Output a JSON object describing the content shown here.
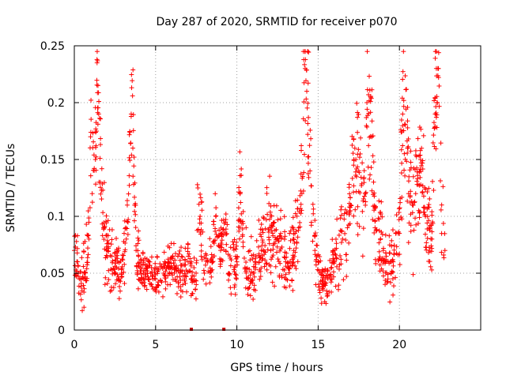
{
  "chart_data": {
    "type": "scatter",
    "title": "Day 287 of 2020, SRMTID for receiver p070",
    "xlabel": "GPS time / hours",
    "ylabel": "SRMTID / TECUs",
    "xlim": [
      0,
      25
    ],
    "ylim": [
      0,
      0.25
    ],
    "grid": true,
    "marker": "plus",
    "color": "#ff0000",
    "x_ticks": [
      0,
      5,
      10,
      15,
      20
    ],
    "x_tick_labels": [
      "0",
      "5",
      "10",
      "15",
      "20"
    ],
    "y_ticks": [
      0,
      0.05,
      0.1,
      0.15,
      0.2,
      0.25
    ],
    "y_tick_labels": [
      "0",
      "0.05",
      "0.1",
      "0.15",
      "0.2",
      "0.25"
    ],
    "series": [
      {
        "name": "p070",
        "description": "dense scatter of ~5-minute SRMTID samples; envelope values below",
        "x": [
          0.0,
          0.2,
          0.4,
          0.6,
          0.9,
          1.0,
          1.1,
          1.3,
          1.4,
          1.5,
          1.6,
          1.8,
          2.0,
          2.3,
          2.6,
          2.9,
          3.2,
          3.5,
          3.6,
          3.8,
          4.1,
          4.5,
          5.0,
          5.5,
          6.0,
          6.5,
          7.0,
          7.5,
          7.6,
          8.0,
          8.5,
          8.7,
          9.0,
          9.3,
          9.5,
          10.0,
          10.2,
          10.5,
          11.0,
          11.5,
          12.0,
          12.5,
          13.0,
          13.5,
          13.8,
          14.0,
          14.2,
          14.3,
          14.5,
          14.8,
          15.0,
          15.3,
          15.6,
          16.0,
          16.5,
          16.8,
          17.0,
          17.2,
          17.5,
          17.9,
          18.0,
          18.3,
          18.5,
          19.0,
          19.5,
          20.0,
          20.2,
          20.5,
          20.8,
          21.0,
          21.3,
          21.6,
          22.0,
          22.2,
          22.4,
          22.6,
          22.8
        ],
        "y": [
          0.07,
          0.06,
          0.045,
          0.05,
          0.08,
          0.17,
          0.12,
          0.15,
          0.235,
          0.19,
          0.13,
          0.09,
          0.07,
          0.065,
          0.055,
          0.05,
          0.08,
          0.19,
          0.16,
          0.07,
          0.055,
          0.05,
          0.045,
          0.05,
          0.055,
          0.05,
          0.06,
          0.04,
          0.125,
          0.05,
          0.06,
          0.1,
          0.07,
          0.095,
          0.05,
          0.06,
          0.12,
          0.055,
          0.05,
          0.07,
          0.09,
          0.08,
          0.06,
          0.07,
          0.09,
          0.12,
          0.23,
          0.21,
          0.14,
          0.07,
          0.06,
          0.04,
          0.045,
          0.06,
          0.08,
          0.09,
          0.11,
          0.15,
          0.14,
          0.12,
          0.2,
          0.17,
          0.09,
          0.07,
          0.06,
          0.085,
          0.19,
          0.16,
          0.11,
          0.12,
          0.15,
          0.1,
          0.08,
          0.19,
          0.23,
          0.11,
          0.07
        ],
        "spread": [
          0.015,
          0.02,
          0.02,
          0.022,
          0.03,
          0.05,
          0.05,
          0.05,
          0.02,
          0.05,
          0.045,
          0.03,
          0.022,
          0.02,
          0.018,
          0.015,
          0.02,
          0.05,
          0.05,
          0.02,
          0.015,
          0.012,
          0.012,
          0.012,
          0.014,
          0.015,
          0.017,
          0.015,
          0.03,
          0.015,
          0.016,
          0.02,
          0.016,
          0.02,
          0.015,
          0.018,
          0.03,
          0.02,
          0.018,
          0.02,
          0.025,
          0.025,
          0.022,
          0.022,
          0.025,
          0.04,
          0.05,
          0.05,
          0.045,
          0.02,
          0.018,
          0.015,
          0.015,
          0.018,
          0.025,
          0.028,
          0.03,
          0.04,
          0.04,
          0.035,
          0.04,
          0.04,
          0.028,
          0.022,
          0.02,
          0.025,
          0.05,
          0.05,
          0.04,
          0.04,
          0.04,
          0.035,
          0.03,
          0.04,
          0.05,
          0.04,
          0.02
        ]
      }
    ],
    "markers_on_axis": [
      {
        "x": 7.2,
        "y": 0
      },
      {
        "x": 9.2,
        "y": 0
      }
    ]
  }
}
